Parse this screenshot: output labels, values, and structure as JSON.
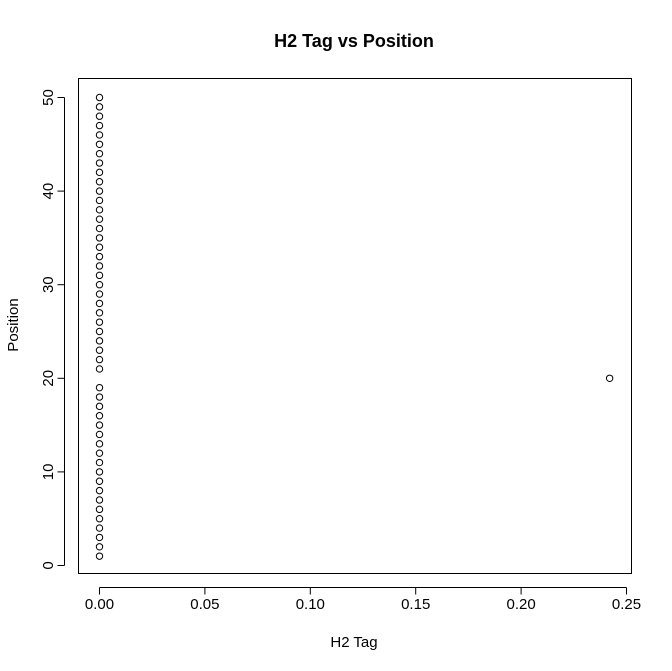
{
  "chart_data": {
    "type": "scatter",
    "title": "H2 Tag vs Position",
    "xlabel": "H2 Tag",
    "ylabel": "Position",
    "xlim": [
      -0.01,
      0.25
    ],
    "ylim": [
      0,
      51
    ],
    "x_ticks": [
      "0.00",
      "0.05",
      "0.10",
      "0.15",
      "0.20",
      "0.25"
    ],
    "y_ticks": [
      "0",
      "10",
      "20",
      "30",
      "40",
      "50"
    ],
    "grid": false,
    "marker": "open-circle",
    "points": [
      [
        0,
        1
      ],
      [
        0,
        2
      ],
      [
        0,
        3
      ],
      [
        0,
        4
      ],
      [
        0,
        5
      ],
      [
        0,
        6
      ],
      [
        0,
        7
      ],
      [
        0,
        8
      ],
      [
        0,
        9
      ],
      [
        0,
        10
      ],
      [
        0,
        11
      ],
      [
        0,
        12
      ],
      [
        0,
        13
      ],
      [
        0,
        14
      ],
      [
        0,
        15
      ],
      [
        0,
        16
      ],
      [
        0,
        17
      ],
      [
        0,
        18
      ],
      [
        0,
        19
      ],
      [
        0.242,
        20
      ],
      [
        0,
        21
      ],
      [
        0,
        22
      ],
      [
        0,
        23
      ],
      [
        0,
        24
      ],
      [
        0,
        25
      ],
      [
        0,
        26
      ],
      [
        0,
        27
      ],
      [
        0,
        28
      ],
      [
        0,
        29
      ],
      [
        0,
        30
      ],
      [
        0,
        31
      ],
      [
        0,
        32
      ],
      [
        0,
        33
      ],
      [
        0,
        34
      ],
      [
        0,
        35
      ],
      [
        0,
        36
      ],
      [
        0,
        37
      ],
      [
        0,
        38
      ],
      [
        0,
        39
      ],
      [
        0,
        40
      ],
      [
        0,
        41
      ],
      [
        0,
        42
      ],
      [
        0,
        43
      ],
      [
        0,
        44
      ],
      [
        0,
        45
      ],
      [
        0,
        46
      ],
      [
        0,
        47
      ],
      [
        0,
        48
      ],
      [
        0,
        49
      ],
      [
        0,
        50
      ]
    ]
  }
}
